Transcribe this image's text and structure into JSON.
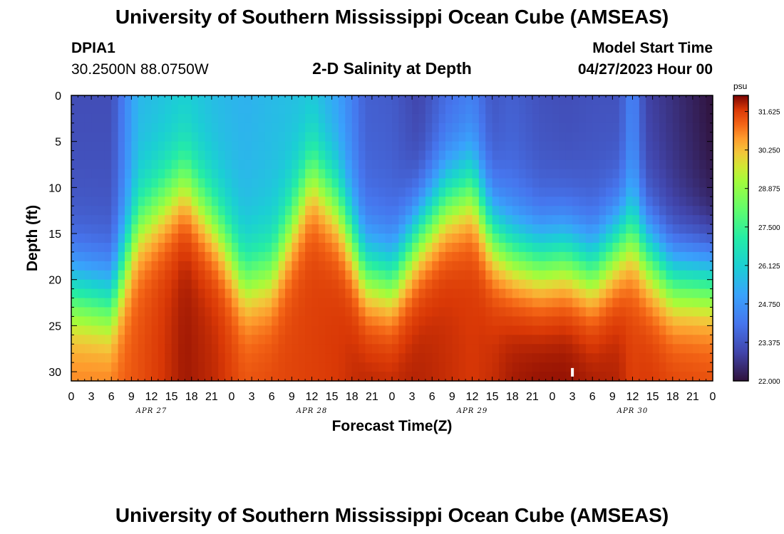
{
  "header": {
    "title": "University of Southern Mississippi Ocean Cube (AMSEAS)",
    "station": "DPIA1",
    "coords": "30.2500N  88.0750W",
    "subtitle": "2-D Salinity at Depth",
    "model_start_label": "Model Start Time",
    "model_start": "04/27/2023 Hour 00"
  },
  "footer_title": "University of Southern Mississippi Ocean Cube (AMSEAS)",
  "chart_data": {
    "type": "heatmap",
    "title": "2-D Salinity at Depth",
    "xlabel": "Forecast Time(Z)",
    "ylabel": "Depth (ft)",
    "x_range_hours": [
      0,
      96
    ],
    "x_ticks": [
      "0",
      "3",
      "6",
      "9",
      "12",
      "15",
      "18",
      "21",
      "0",
      "3",
      "6",
      "9",
      "12",
      "15",
      "18",
      "21",
      "0",
      "3",
      "6",
      "9",
      "12",
      "15",
      "18",
      "21",
      "0",
      "3",
      "6",
      "9",
      "12",
      "15",
      "18",
      "21",
      "0"
    ],
    "x_tick_step_hours": 3,
    "day_labels": [
      {
        "label": "APR 27",
        "hour": 12
      },
      {
        "label": "APR 28",
        "hour": 36
      },
      {
        "label": "APR 29",
        "hour": 60
      },
      {
        "label": "APR 30",
        "hour": 84
      }
    ],
    "ylim": [
      0,
      31
    ],
    "y_inverted": true,
    "y_ticks": [
      0,
      5,
      10,
      15,
      20,
      25,
      30
    ],
    "colorbar": {
      "unit": "psu",
      "min": 22.0,
      "max": 32.2,
      "ticks": [
        "31.625",
        "30.250",
        "28.875",
        "27.500",
        "26.125",
        "24.750",
        "23.375",
        "22.000"
      ],
      "tick_values": [
        31.625,
        30.25,
        28.875,
        27.5,
        26.125,
        24.75,
        23.375,
        22.0
      ]
    },
    "field": {
      "description_hours": [
        0,
        6,
        10,
        17,
        22,
        26,
        30,
        36,
        40,
        44,
        48,
        52,
        56,
        60,
        63,
        66,
        70,
        74,
        78,
        82,
        84,
        86,
        90,
        96
      ],
      "halocline_depth_ft": [
        21.5,
        22.5,
        14,
        9.5,
        14.5,
        20,
        19,
        8.5,
        12,
        19,
        20,
        15,
        11.5,
        10,
        15,
        17,
        18,
        17.5,
        19,
        16,
        15,
        17,
        20,
        20
      ],
      "surface_salinity_psu": [
        23.2,
        23.2,
        25.5,
        26.0,
        25.6,
        25.4,
        25.6,
        25.8,
        25.0,
        23.6,
        23.5,
        23.0,
        23.8,
        24.2,
        23.4,
        23.6,
        23.3,
        23.2,
        23.3,
        23.3,
        24.5,
        23.0,
        22.6,
        22.0
      ],
      "bottom_salinity_psu": [
        31.0,
        31.1,
        31.4,
        32.0,
        31.8,
        31.4,
        31.5,
        31.6,
        31.7,
        31.9,
        31.9,
        31.9,
        31.8,
        31.7,
        31.8,
        32.0,
        32.1,
        32.1,
        32.0,
        31.9,
        31.6,
        31.7,
        31.6,
        31.5
      ]
    }
  }
}
